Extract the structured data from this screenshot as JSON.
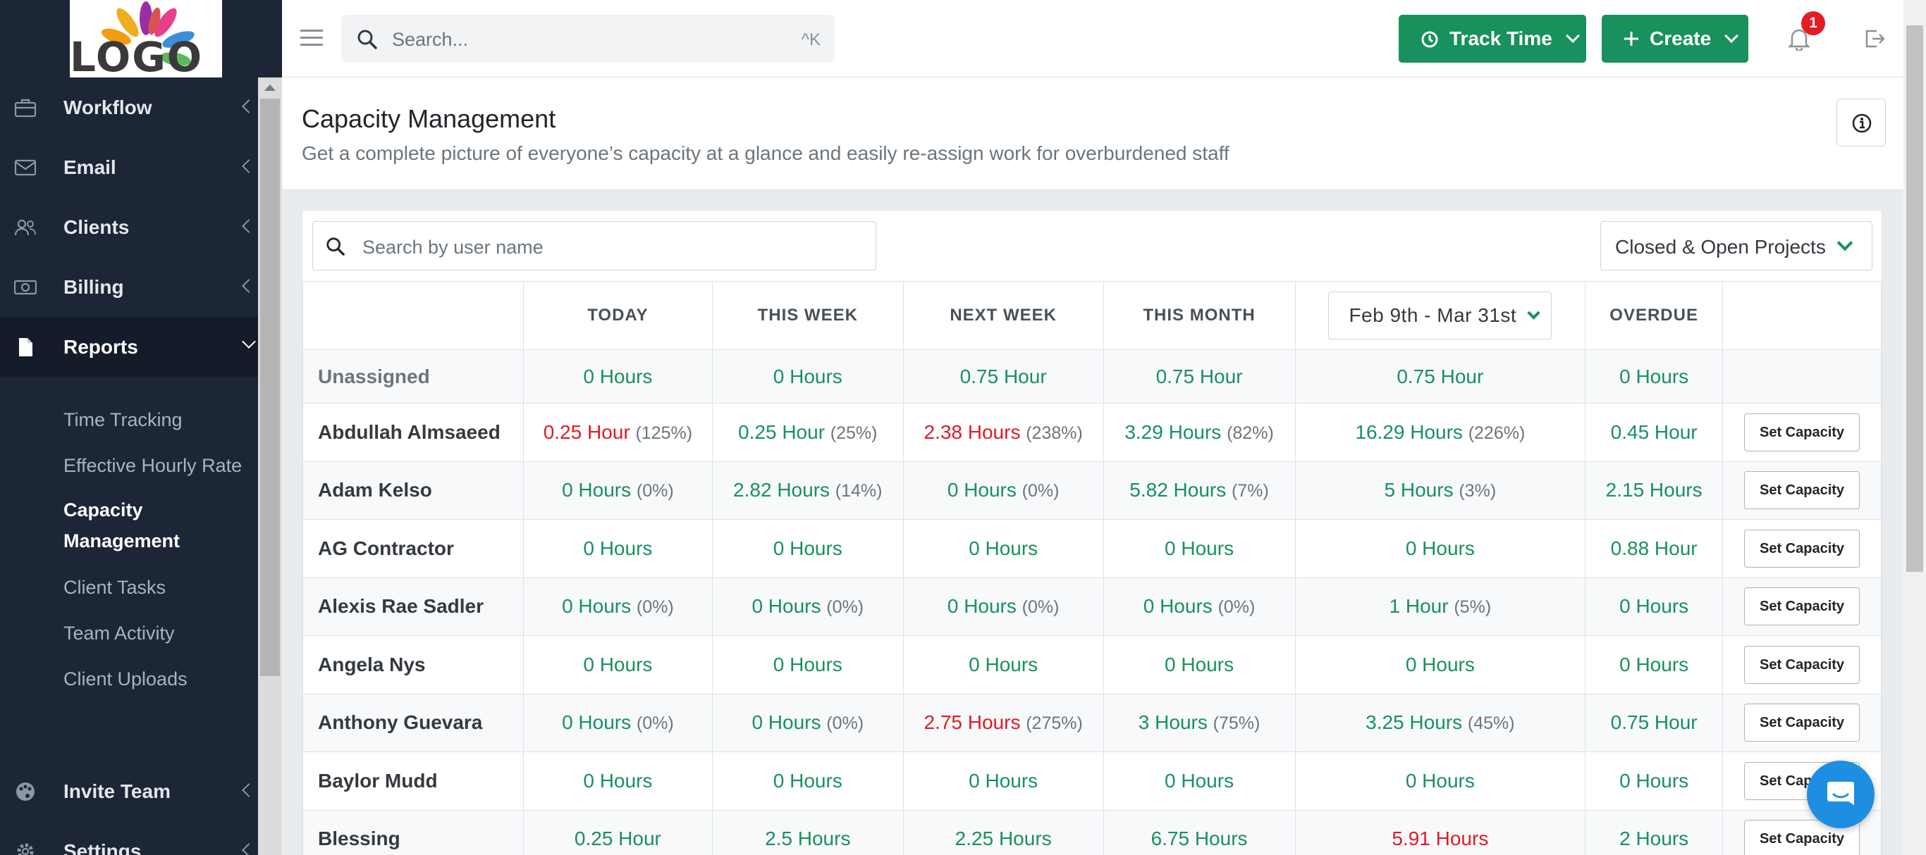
{
  "sidebar": {
    "logo_text": "LOGO",
    "items": [
      {
        "label": "Workflow",
        "icon": "briefcase-icon"
      },
      {
        "label": "Email",
        "icon": "envelope-icon"
      },
      {
        "label": "Clients",
        "icon": "users-icon"
      },
      {
        "label": "Billing",
        "icon": "money-icon"
      },
      {
        "label": "Reports",
        "icon": "document-icon"
      }
    ],
    "sub_items": [
      {
        "label": "Time Tracking"
      },
      {
        "label": "Effective Hourly Rate"
      },
      {
        "label": "Capacity Management"
      },
      {
        "label": "Client Tasks"
      },
      {
        "label": "Team Activity"
      },
      {
        "label": "Client Uploads"
      }
    ],
    "bottom_items": [
      {
        "label": "Invite Team",
        "icon": "palette-icon"
      },
      {
        "label": "Settings",
        "icon": "gear-icon"
      }
    ]
  },
  "topbar": {
    "search_placeholder": "Search...",
    "search_shortcut": "^K",
    "track_time_label": "Track Time",
    "create_label": "Create",
    "notification_count": "1"
  },
  "header": {
    "title": "Capacity Management",
    "subtitle": "Get a complete picture of everyone’s capacity at a glance and easily re-assign work for overburdened staff"
  },
  "filters": {
    "user_search_placeholder": "Search by user name",
    "projects_value": "Closed & Open Projects",
    "date_range": "Feb 9th - Mar 31st"
  },
  "table": {
    "columns": [
      "TODAY",
      "THIS WEEK",
      "NEXT WEEK",
      "THIS MONTH",
      "OVERDUE"
    ],
    "set_capacity_label": "Set Capacity",
    "rows": [
      {
        "name": "Unassigned",
        "today": {
          "v": "0 Hours",
          "p": ""
        },
        "week": {
          "v": "0 Hours",
          "p": ""
        },
        "next": {
          "v": "0.75 Hour",
          "p": ""
        },
        "month": {
          "v": "0.75 Hour",
          "p": ""
        },
        "range": {
          "v": "0.75 Hour",
          "p": ""
        },
        "overdue": "0 Hours"
      },
      {
        "name": "Abdullah Almsaeed",
        "today": {
          "v": "0.25 Hour",
          "p": "(125%)",
          "over": true
        },
        "week": {
          "v": "0.25 Hour",
          "p": "(25%)"
        },
        "next": {
          "v": "2.38 Hours",
          "p": "(238%)",
          "over": true
        },
        "month": {
          "v": "3.29 Hours",
          "p": "(82%)"
        },
        "range": {
          "v": "16.29 Hours",
          "p": "(226%)"
        },
        "overdue": "0.45 Hour"
      },
      {
        "name": "Adam Kelso",
        "today": {
          "v": "0 Hours",
          "p": "(0%)"
        },
        "week": {
          "v": "2.82 Hours",
          "p": "(14%)"
        },
        "next": {
          "v": "0 Hours",
          "p": "(0%)"
        },
        "month": {
          "v": "5.82 Hours",
          "p": "(7%)"
        },
        "range": {
          "v": "5 Hours",
          "p": "(3%)"
        },
        "overdue": "2.15 Hours"
      },
      {
        "name": "AG Contractor",
        "today": {
          "v": "0 Hours",
          "p": ""
        },
        "week": {
          "v": "0 Hours",
          "p": ""
        },
        "next": {
          "v": "0 Hours",
          "p": ""
        },
        "month": {
          "v": "0 Hours",
          "p": ""
        },
        "range": {
          "v": "0 Hours",
          "p": ""
        },
        "overdue": "0.88 Hour"
      },
      {
        "name": "Alexis Rae Sadler",
        "today": {
          "v": "0 Hours",
          "p": "(0%)"
        },
        "week": {
          "v": "0 Hours",
          "p": "(0%)"
        },
        "next": {
          "v": "0 Hours",
          "p": "(0%)"
        },
        "month": {
          "v": "0 Hours",
          "p": "(0%)"
        },
        "range": {
          "v": "1 Hour",
          "p": "(5%)"
        },
        "overdue": "0 Hours"
      },
      {
        "name": "Angela Nys",
        "today": {
          "v": "0 Hours",
          "p": ""
        },
        "week": {
          "v": "0 Hours",
          "p": ""
        },
        "next": {
          "v": "0 Hours",
          "p": ""
        },
        "month": {
          "v": "0 Hours",
          "p": ""
        },
        "range": {
          "v": "0 Hours",
          "p": ""
        },
        "overdue": "0 Hours"
      },
      {
        "name": "Anthony Guevara",
        "today": {
          "v": "0 Hours",
          "p": "(0%)"
        },
        "week": {
          "v": "0 Hours",
          "p": "(0%)"
        },
        "next": {
          "v": "2.75 Hours",
          "p": "(275%)",
          "over": true
        },
        "month": {
          "v": "3 Hours",
          "p": "(75%)"
        },
        "range": {
          "v": "3.25 Hours",
          "p": "(45%)"
        },
        "overdue": "0.75 Hour"
      },
      {
        "name": "Baylor Mudd",
        "today": {
          "v": "0 Hours",
          "p": ""
        },
        "week": {
          "v": "0 Hours",
          "p": ""
        },
        "next": {
          "v": "0 Hours",
          "p": ""
        },
        "month": {
          "v": "0 Hours",
          "p": ""
        },
        "range": {
          "v": "0 Hours",
          "p": ""
        },
        "overdue": "0 Hours"
      },
      {
        "name": "Blessing",
        "today": {
          "v": "0.25 Hour",
          "p": ""
        },
        "week": {
          "v": "2.5 Hours",
          "p": ""
        },
        "next": {
          "v": "2.25 Hours",
          "p": ""
        },
        "month": {
          "v": "6.75 Hours",
          "p": ""
        },
        "range": {
          "v": "5.91 Hours",
          "p": "",
          "over": true
        },
        "overdue": "2 Hours"
      }
    ]
  },
  "colors": {
    "accent_green": "#18915c",
    "over_capacity_red": "#e01b24",
    "sidebar_bg": "#1c2637"
  }
}
